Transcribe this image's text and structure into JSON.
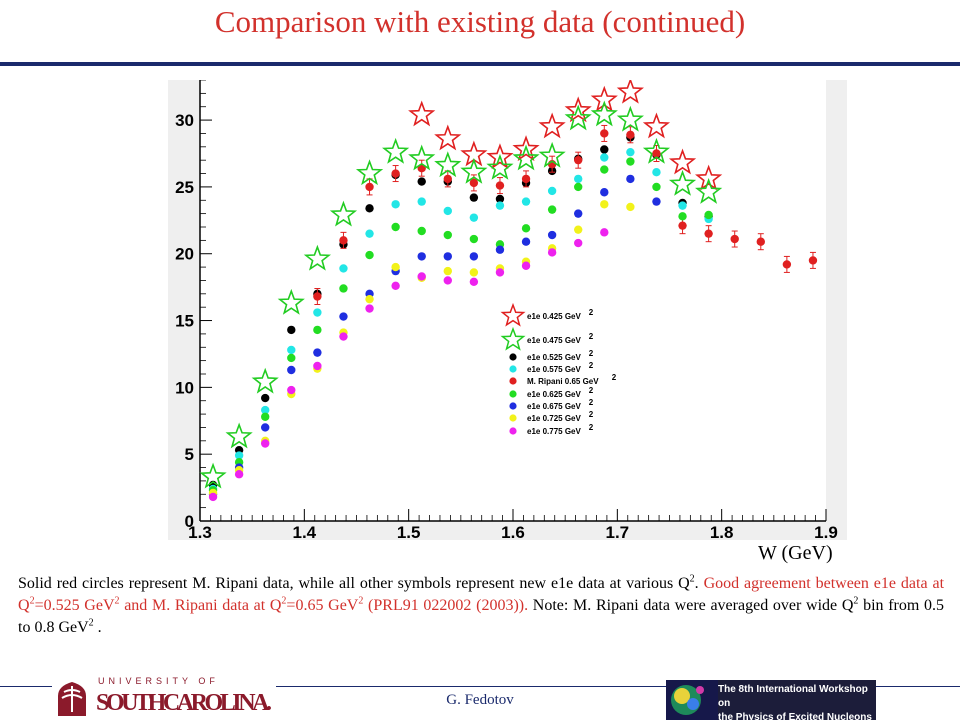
{
  "slide": {
    "title": "Comparison with existing data (continued)",
    "x_unit_label": "W (GeV)",
    "caption": {
      "part1": "Solid red circles represent M. Ripani data, while all other symbols represent new e1e data at various Q",
      "part1_sup": "2",
      "part1_end": ".",
      "red_a": "Good agreement between e1e data at Q",
      "red_a_sup": "2",
      "red_b": "=0.525 GeV",
      "red_b_sup": "2",
      "red_c": " and M. Ripani data at Q",
      "red_c_sup": "2",
      "red_d": "=0.65 GeV",
      "red_d_sup": "2",
      "red_e": " (PRL91 022002 (2003)).",
      "note_a": "  Note: M. Ripani data were averaged over wide Q",
      "note_a_sup": "2",
      "note_b": " bin from 0.5 to 0.8 GeV",
      "note_b_sup": "2",
      "note_c": " ."
    },
    "footer": {
      "logo_top": "UNIVERSITY OF",
      "logo_main": "SOUTHCAROLINA.",
      "author": "G. Fedotov",
      "workshop_line1": "The 8th International Workshop on",
      "workshop_line2": "the Physics of Excited Nucleons"
    }
  },
  "chart_data": {
    "type": "scatter",
    "title": "",
    "xlabel": "W (GeV)",
    "ylabel": "",
    "xlim": [
      1.3,
      1.9
    ],
    "ylim": [
      0,
      33
    ],
    "xticks": [
      "1.3",
      "1.4",
      "1.5",
      "1.6",
      "1.7",
      "1.8",
      "1.9"
    ],
    "yticks": [
      "0",
      "5",
      "10",
      "15",
      "20",
      "25",
      "30"
    ],
    "grid": false,
    "legend_position": "center-right",
    "series": [
      {
        "name": "e1e 0.425 GeV",
        "sup": "2",
        "marker": "star",
        "color": "#e02020",
        "x": [
          1.5125,
          1.5375,
          1.5625,
          1.5875,
          1.6125,
          1.6375,
          1.6625,
          1.6875,
          1.7125,
          1.7375,
          1.7625,
          1.7875
        ],
        "y": [
          30.4,
          28.6,
          27.4,
          27.2,
          27.8,
          29.5,
          30.7,
          31.5,
          32.1,
          29.5,
          26.8,
          25.6
        ]
      },
      {
        "name": "e1e 0.475 GeV",
        "sup": "2",
        "marker": "star",
        "color": "#22cc22",
        "x": [
          1.3125,
          1.3375,
          1.3625,
          1.3875,
          1.4125,
          1.4375,
          1.4625,
          1.4875,
          1.5125,
          1.5375,
          1.5625,
          1.5875,
          1.6125,
          1.6375,
          1.6625,
          1.6875,
          1.7125,
          1.7375,
          1.7625,
          1.7875
        ],
        "y": [
          3.3,
          6.3,
          10.4,
          16.3,
          19.6,
          22.9,
          26.0,
          27.6,
          27.1,
          26.6,
          26.1,
          26.4,
          27.1,
          27.3,
          30.1,
          30.4,
          30.0,
          27.6,
          25.2,
          24.6
        ]
      },
      {
        "name": "e1e 0.525 GeV",
        "sup": "2",
        "marker": "circle",
        "color": "#000000",
        "x": [
          1.3125,
          1.3375,
          1.3625,
          1.3875,
          1.4125,
          1.4375,
          1.4625,
          1.4875,
          1.5125,
          1.5375,
          1.5625,
          1.5875,
          1.6125,
          1.6375,
          1.6625,
          1.6875,
          1.7125,
          1.7375,
          1.7625,
          1.7875
        ],
        "y": [
          2.7,
          5.3,
          9.2,
          14.3,
          17.0,
          20.7,
          23.4,
          25.9,
          25.4,
          25.4,
          24.2,
          24.1,
          25.3,
          26.2,
          27.1,
          27.8,
          28.7,
          27.4,
          23.8,
          22.8
        ]
      },
      {
        "name": "e1e 0.575 GeV",
        "sup": "2",
        "marker": "circle",
        "color": "#22e6e6",
        "x": [
          1.3125,
          1.3375,
          1.3625,
          1.3875,
          1.4125,
          1.4375,
          1.4625,
          1.4875,
          1.5125,
          1.5375,
          1.5625,
          1.5875,
          1.6125,
          1.6375,
          1.6625,
          1.6875,
          1.7125,
          1.7375,
          1.7625,
          1.7875
        ],
        "y": [
          2.4,
          4.9,
          8.3,
          12.8,
          15.6,
          18.9,
          21.5,
          23.7,
          23.9,
          23.2,
          22.7,
          23.6,
          23.9,
          24.7,
          25.6,
          27.2,
          27.6,
          26.1,
          23.6,
          22.6
        ]
      },
      {
        "name": "M. Ripani 0.65 GeV",
        "sup": "2",
        "marker": "circle_err",
        "color": "#e02020",
        "x": [
          1.4125,
          1.4375,
          1.4625,
          1.4875,
          1.5125,
          1.5375,
          1.5625,
          1.5875,
          1.6125,
          1.6375,
          1.6625,
          1.6875,
          1.7125,
          1.7375,
          1.7625,
          1.7875,
          1.8125,
          1.8375,
          1.8625,
          1.8875
        ],
        "y": [
          16.8,
          21.0,
          25.0,
          26.0,
          26.4,
          25.6,
          25.3,
          25.1,
          25.6,
          26.7,
          27.0,
          29.0,
          28.9,
          27.5,
          22.1,
          21.5,
          21.1,
          20.9,
          19.2,
          19.5
        ]
      },
      {
        "name": "e1e 0.625 GeV",
        "sup": "2",
        "marker": "circle",
        "color": "#22dd22",
        "x": [
          1.3125,
          1.3375,
          1.3625,
          1.3875,
          1.4125,
          1.4375,
          1.4625,
          1.4875,
          1.5125,
          1.5375,
          1.5625,
          1.5875,
          1.6125,
          1.6375,
          1.6625,
          1.6875,
          1.7125,
          1.7375,
          1.7625,
          1.7875
        ],
        "y": [
          2.3,
          4.4,
          7.8,
          12.2,
          14.3,
          17.4,
          19.9,
          22.0,
          21.7,
          21.4,
          21.1,
          20.7,
          21.9,
          23.3,
          25.0,
          26.3,
          26.9,
          25.0,
          22.8,
          22.9
        ]
      },
      {
        "name": "e1e 0.675 GeV",
        "sup": "2",
        "marker": "circle",
        "color": "#1f2ee0",
        "x": [
          1.3125,
          1.3375,
          1.3625,
          1.3875,
          1.4125,
          1.4375,
          1.4625,
          1.4875,
          1.5125,
          1.5375,
          1.5625,
          1.5875,
          1.6125,
          1.6375,
          1.6625,
          1.6875,
          1.7125,
          1.7375
        ],
        "y": [
          2.0,
          4.0,
          7.0,
          11.3,
          12.6,
          15.3,
          17.0,
          18.7,
          19.8,
          19.8,
          19.8,
          20.3,
          20.9,
          21.4,
          23.0,
          24.6,
          25.6,
          23.9
        ]
      },
      {
        "name": "e1e 0.725 GeV",
        "sup": "2",
        "marker": "circle",
        "color": "#f2f21a",
        "x": [
          1.3125,
          1.3375,
          1.3625,
          1.3875,
          1.4125,
          1.4375,
          1.4625,
          1.4875,
          1.5125,
          1.5375,
          1.5625,
          1.5875,
          1.6125,
          1.6375,
          1.6625,
          1.6875,
          1.7125
        ],
        "y": [
          2.1,
          3.8,
          6.0,
          9.5,
          11.4,
          14.1,
          16.6,
          19.0,
          18.2,
          18.7,
          18.6,
          18.9,
          19.4,
          20.4,
          21.8,
          23.7,
          23.5
        ]
      },
      {
        "name": "e1e 0.775 GeV",
        "sup": "2",
        "marker": "circle",
        "color": "#ee22ee",
        "x": [
          1.3125,
          1.3375,
          1.3625,
          1.3875,
          1.4125,
          1.4375,
          1.4625,
          1.4875,
          1.5125,
          1.5375,
          1.5625,
          1.5875,
          1.6125,
          1.6375,
          1.6625,
          1.6875
        ],
        "y": [
          1.8,
          3.5,
          5.8,
          9.8,
          11.6,
          13.8,
          15.9,
          17.6,
          18.3,
          18.0,
          17.9,
          18.6,
          19.1,
          20.1,
          20.8,
          21.6
        ]
      }
    ]
  }
}
